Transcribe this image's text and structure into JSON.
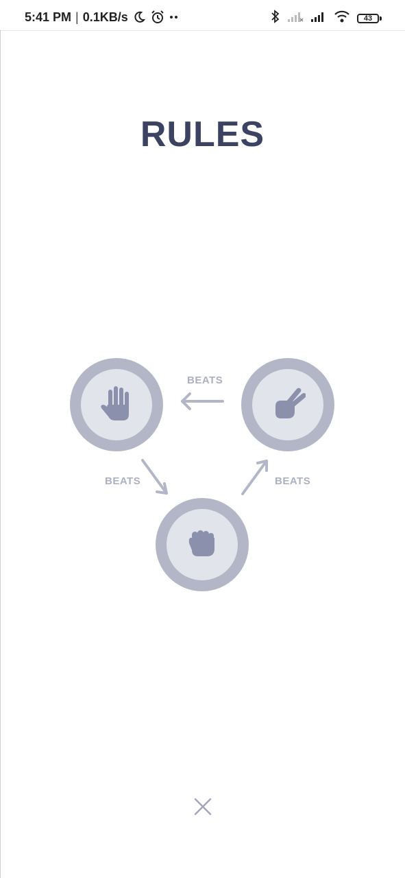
{
  "status_bar": {
    "time": "5:41 PM",
    "network_speed": "0.1KB/s",
    "battery_level": "43",
    "icons": [
      "moon-icon",
      "alarm-icon",
      "more-dots-icon",
      "bluetooth-icon",
      "signal-no-sim-icon",
      "signal-icon",
      "wifi-icon",
      "battery-icon"
    ]
  },
  "title": "RULES",
  "rules": {
    "beats_label_top": "BEATS",
    "beats_label_left": "BEATS",
    "beats_label_right": "BEATS",
    "choices": [
      {
        "name": "paper",
        "icon": "hand-paper-icon"
      },
      {
        "name": "scissors",
        "icon": "hand-scissors-icon"
      },
      {
        "name": "rock",
        "icon": "hand-rock-icon"
      }
    ]
  },
  "colors": {
    "title": "#3b4262",
    "ring": "#b3b6c6",
    "inner": "#e2e4ec",
    "hand": "#8b90ad",
    "arrow": "#b3b6c6",
    "label": "#adb0c2"
  },
  "close_icon": "close-icon"
}
